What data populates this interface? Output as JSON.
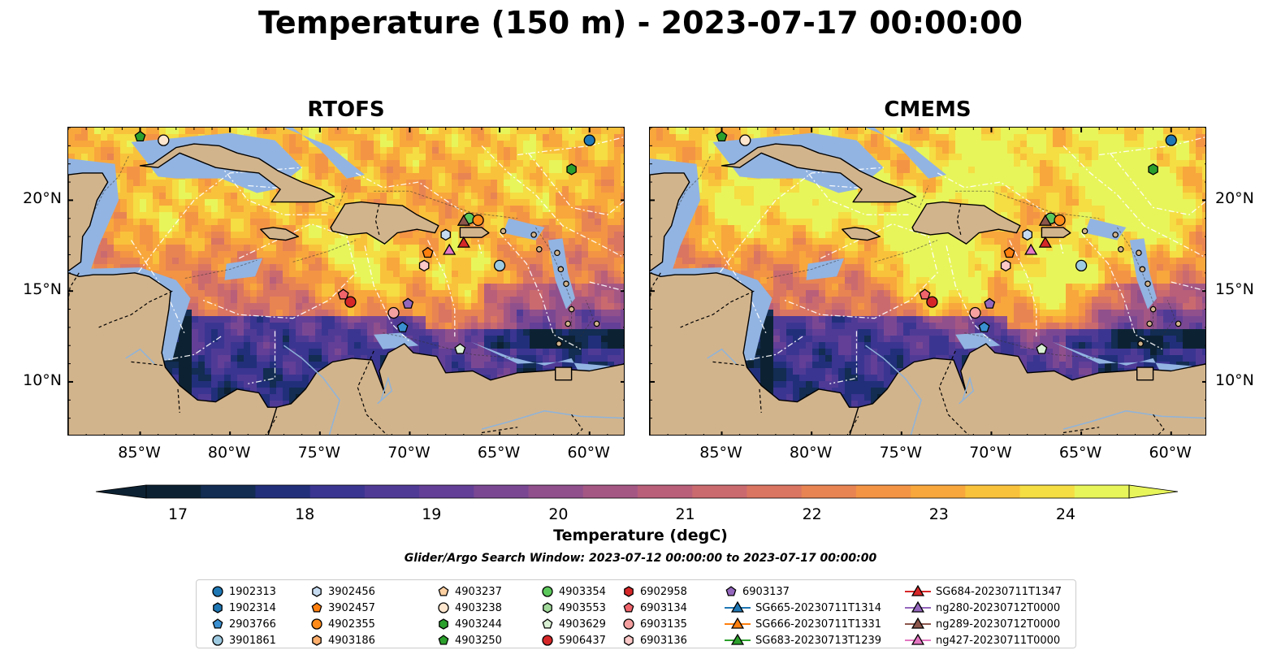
{
  "title": "Temperature (150 m) - 2023-07-17 00:00:00",
  "panels": [
    {
      "title": "RTOFS",
      "variant": "rtofs"
    },
    {
      "title": "CMEMS",
      "variant": "cmems"
    }
  ],
  "axes": {
    "lon_ticks": [
      "85°W",
      "80°W",
      "75°W",
      "70°W",
      "65°W",
      "60°W"
    ],
    "lat_ticks": [
      "20°N",
      "15°N",
      "10°N"
    ],
    "lon_range": [
      -89,
      -58
    ],
    "lat_range": [
      7,
      24
    ]
  },
  "colorbar": {
    "label": "Temperature (degC)",
    "ticks": [
      "17",
      "18",
      "19",
      "20",
      "21",
      "22",
      "23",
      "24"
    ],
    "range": [
      16.75,
      24.5
    ],
    "extend": "both",
    "colors": [
      "#0c2233",
      "#122c52",
      "#212f7a",
      "#3a3590",
      "#4f3b96",
      "#633f97",
      "#7a4893",
      "#90508c",
      "#a55784",
      "#b95f7a",
      "#ca6a6f",
      "#da7561",
      "#e88452",
      "#f39445",
      "#f8a73c",
      "#f9c23b",
      "#f5dd44",
      "#e8f55a"
    ]
  },
  "search_window": "Glider/Argo Search Window: 2023-07-12 00:00:00 to 2023-07-17 00:00:00",
  "map_colors": {
    "land": "#d2b48c",
    "shelf": "#92b4e2",
    "border": "#000000"
  },
  "legend": {
    "items": [
      {
        "label": "1902313",
        "marker": "circle",
        "color": "#1f77b4"
      },
      {
        "label": "1902314",
        "marker": "hexagon",
        "color": "#1f77b4"
      },
      {
        "label": "2903766",
        "marker": "pentagon",
        "color": "#3a8fd0"
      },
      {
        "label": "3901861",
        "marker": "circle",
        "color": "#9ecae1"
      },
      {
        "label": "3902456",
        "marker": "hexagon",
        "color": "#c6dbef"
      },
      {
        "label": "3902457",
        "marker": "pentagon",
        "color": "#ff7f0e"
      },
      {
        "label": "4902355",
        "marker": "circle",
        "color": "#ff8c1a"
      },
      {
        "label": "4903186",
        "marker": "hexagon",
        "color": "#fdae6b"
      },
      {
        "label": "4903237",
        "marker": "pentagon",
        "color": "#fdd0a2"
      },
      {
        "label": "4903238",
        "marker": "circle",
        "color": "#fee6ce"
      },
      {
        "label": "4903244",
        "marker": "hexagon",
        "color": "#2ca02c"
      },
      {
        "label": "4903250",
        "marker": "pentagon",
        "color": "#2ca02c"
      },
      {
        "label": "4903354",
        "marker": "circle",
        "color": "#5bc85b"
      },
      {
        "label": "4903553",
        "marker": "hexagon",
        "color": "#a1d99b"
      },
      {
        "label": "4903629",
        "marker": "pentagon",
        "color": "#d9f0d3"
      },
      {
        "label": "5906437",
        "marker": "circle",
        "color": "#d62728"
      },
      {
        "label": "6902958",
        "marker": "hexagon",
        "color": "#d62728"
      },
      {
        "label": "6903134",
        "marker": "pentagon",
        "color": "#f0646b"
      },
      {
        "label": "6903135",
        "marker": "circle",
        "color": "#f4a0a0"
      },
      {
        "label": "6903136",
        "marker": "hexagon",
        "color": "#fcc8c8"
      },
      {
        "label": "6903137",
        "marker": "pentagon",
        "color": "#9467bd"
      },
      {
        "label": "SG665-20230711T1314",
        "marker": "triangle-line",
        "color": "#1f77b4"
      },
      {
        "label": "SG666-20230711T1331",
        "marker": "triangle-line",
        "color": "#ff7f0e"
      },
      {
        "label": "SG683-20230713T1239",
        "marker": "triangle-line",
        "color": "#2ca02c"
      },
      {
        "label": "SG684-20230711T1347",
        "marker": "triangle-line",
        "color": "#d62728"
      },
      {
        "label": "ng280-20230712T0000",
        "marker": "triangle-line",
        "color": "#9467bd"
      },
      {
        "label": "ng289-20230712T0000",
        "marker": "triangle-line",
        "color": "#8c564b"
      },
      {
        "label": "ng427-20230711T0000",
        "marker": "triangle-line",
        "color": "#e377c2"
      }
    ]
  },
  "map_points": [
    {
      "label": "1902313",
      "lon": -60.0,
      "lat": 23.3
    },
    {
      "label": "4903244",
      "lon": -61.0,
      "lat": 21.7
    },
    {
      "label": "4903250",
      "lon": -85.0,
      "lat": 23.5
    },
    {
      "label": "4903238",
      "lon": -83.7,
      "lat": 23.3
    },
    {
      "label": "4903354",
      "lon": -66.7,
      "lat": 19.0
    },
    {
      "label": "4902355",
      "lon": -66.2,
      "lat": 18.9
    },
    {
      "label": "ng289-20230712T0000",
      "lon": -67.0,
      "lat": 18.8
    },
    {
      "label": "3902456",
      "lon": -68.0,
      "lat": 18.1
    },
    {
      "label": "SG684-20230711T1347",
      "lon": -67.0,
      "lat": 17.6
    },
    {
      "label": "3902457",
      "lon": -69.0,
      "lat": 17.1
    },
    {
      "label": "ng427-20230711T0000",
      "lon": -67.8,
      "lat": 17.2
    },
    {
      "label": "6903136",
      "lon": -69.2,
      "lat": 16.4
    },
    {
      "label": "3901861",
      "lon": -65.0,
      "lat": 16.4
    },
    {
      "label": "6903134",
      "lon": -73.7,
      "lat": 14.8
    },
    {
      "label": "5906437",
      "lon": -73.3,
      "lat": 14.4
    },
    {
      "label": "6903137",
      "lon": -70.1,
      "lat": 14.3
    },
    {
      "label": "6903135",
      "lon": -70.9,
      "lat": 13.8
    },
    {
      "label": "2903766",
      "lon": -70.4,
      "lat": 13.0
    },
    {
      "label": "4903629",
      "lon": -67.2,
      "lat": 11.8
    }
  ]
}
